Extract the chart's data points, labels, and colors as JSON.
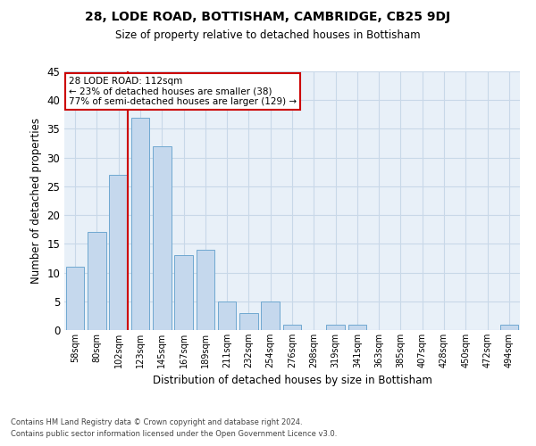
{
  "title": "28, LODE ROAD, BOTTISHAM, CAMBRIDGE, CB25 9DJ",
  "subtitle": "Size of property relative to detached houses in Bottisham",
  "xlabel": "Distribution of detached houses by size in Bottisham",
  "ylabel": "Number of detached properties",
  "categories": [
    "58sqm",
    "80sqm",
    "102sqm",
    "123sqm",
    "145sqm",
    "167sqm",
    "189sqm",
    "211sqm",
    "232sqm",
    "254sqm",
    "276sqm",
    "298sqm",
    "319sqm",
    "341sqm",
    "363sqm",
    "385sqm",
    "407sqm",
    "428sqm",
    "450sqm",
    "472sqm",
    "494sqm"
  ],
  "values": [
    11,
    17,
    27,
    37,
    32,
    13,
    14,
    5,
    3,
    5,
    1,
    0,
    1,
    1,
    0,
    0,
    0,
    0,
    0,
    0,
    1
  ],
  "bar_color": "#c5d8ed",
  "bar_edge_color": "#6fa8d0",
  "ref_line_index": 2,
  "ref_line_color": "#cc0000",
  "annotation_line1": "28 LODE ROAD: 112sqm",
  "annotation_line2": "← 23% of detached houses are smaller (38)",
  "annotation_line3": "77% of semi-detached houses are larger (129) →",
  "annotation_box_color": "#ffffff",
  "annotation_box_edge": "#cc0000",
  "ylim": [
    0,
    45
  ],
  "yticks": [
    0,
    5,
    10,
    15,
    20,
    25,
    30,
    35,
    40,
    45
  ],
  "grid_color": "#c8d8e8",
  "bg_color": "#e8f0f8",
  "footer1": "Contains HM Land Registry data © Crown copyright and database right 2024.",
  "footer2": "Contains public sector information licensed under the Open Government Licence v3.0."
}
